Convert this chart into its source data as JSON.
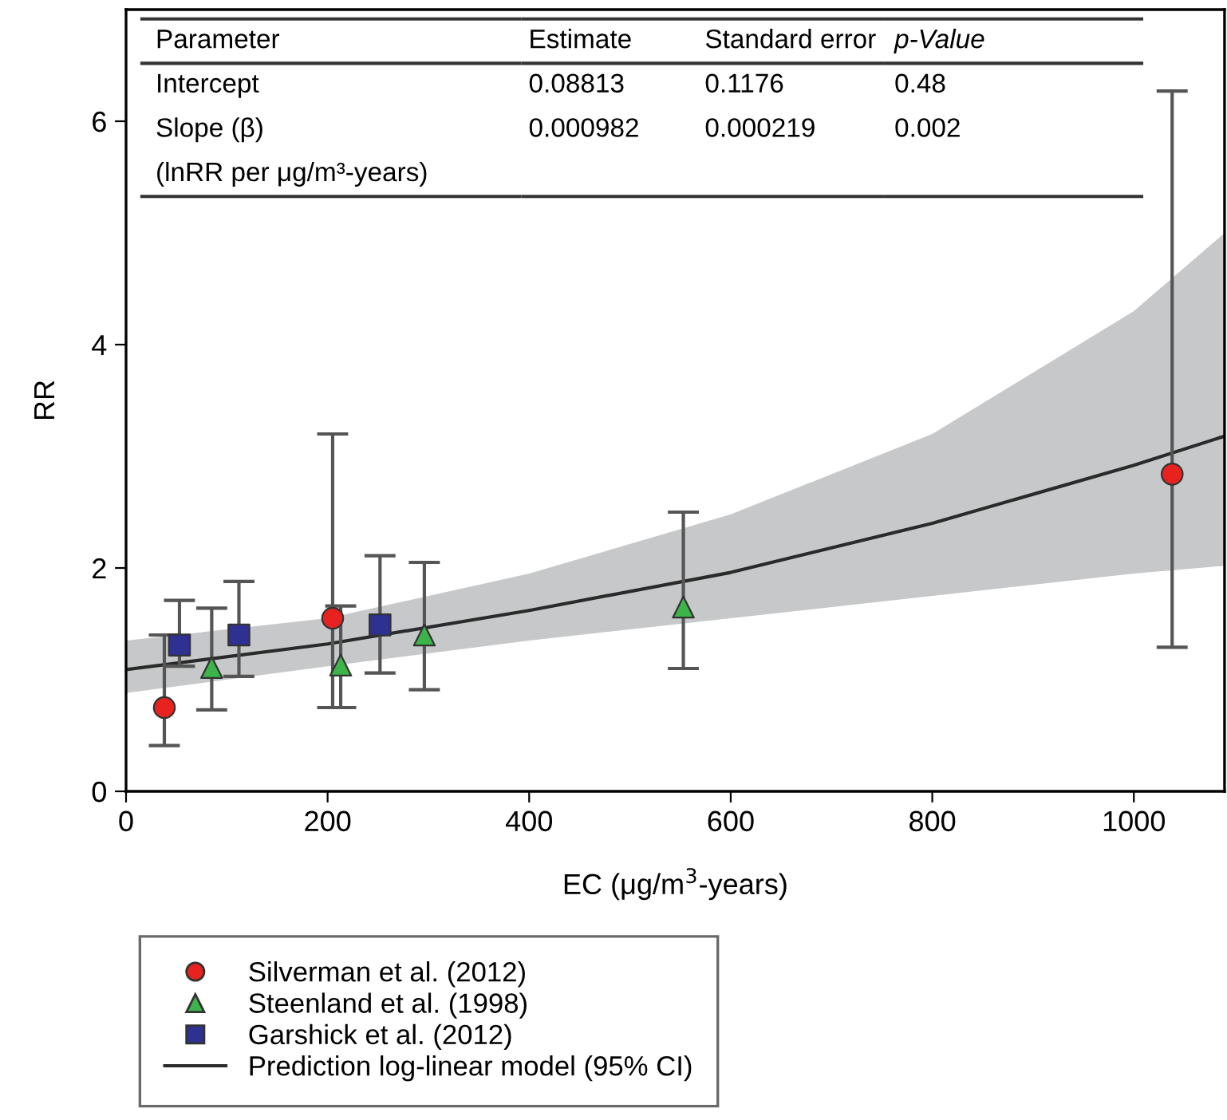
{
  "chart_data": {
    "type": "scatter",
    "xlabel": "EC (μg/m$^{3}$-years)",
    "ylabel": "RR",
    "xlim": [
      0,
      1090
    ],
    "xticks": [
      0,
      200,
      400,
      600,
      800,
      1000
    ],
    "ylim": [
      0,
      7
    ],
    "yticks": [
      0,
      2,
      4,
      6
    ],
    "grid": false,
    "legend": "bottom left",
    "series": [
      {
        "name": "Silverman et al. (2012)",
        "marker": "circle",
        "color": "#e8231f",
        "x": [
          38,
          205,
          1038
        ],
        "values": [
          0.75,
          1.55,
          2.84
        ],
        "errors": [
          [
            0.41,
            1.4
          ],
          [
            0.75,
            3.2
          ],
          [
            1.29,
            6.27
          ]
        ]
      },
      {
        "name": "Steenland et al. (1998)",
        "marker": "triangle",
        "color": "#3cb44a",
        "x": [
          85,
          213,
          296,
          553
        ],
        "values": [
          1.11,
          1.13,
          1.4,
          1.65
        ],
        "errors": [
          [
            0.73,
            1.64
          ],
          [
            0.75,
            1.66
          ],
          [
            0.91,
            2.05
          ],
          [
            1.1,
            2.5
          ]
        ]
      },
      {
        "name": "Garshick et al. (2012)",
        "marker": "square",
        "color": "#2e3192",
        "x": [
          53,
          112,
          252
        ],
        "values": [
          1.31,
          1.4,
          1.49
        ],
        "errors": [
          [
            1.12,
            1.71
          ],
          [
            1.03,
            1.88
          ],
          [
            1.06,
            2.11
          ]
        ]
      },
      {
        "name": "Prediction log-linear model (95% CI)",
        "type": "line",
        "marker": "none",
        "line_style": "solid",
        "color": "#2a2a2a",
        "x": [
          0,
          200,
          400,
          600,
          800,
          1000,
          1090
        ],
        "values": [
          1.09,
          1.32,
          1.62,
          1.96,
          2.4,
          2.92,
          3.18
        ],
        "lower": [
          0.88,
          1.12,
          1.35,
          1.55,
          1.75,
          1.95,
          2.02
        ],
        "upper": [
          1.35,
          1.55,
          1.95,
          2.48,
          3.2,
          4.3,
          5.0
        ]
      }
    ],
    "annotations": [
      "Parameter",
      "Estimate",
      "Standard error",
      "p-Value",
      "Intercept",
      "0.08813",
      "0.1176",
      "0.48",
      "Slope (β)",
      "0.000982",
      "0.000219",
      "0.002",
      "(lnRR per μg/m³-years)"
    ]
  }
}
